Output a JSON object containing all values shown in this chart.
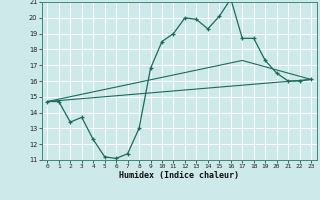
{
  "xlabel": "Humidex (Indice chaleur)",
  "xlim": [
    -0.5,
    23.5
  ],
  "ylim": [
    11,
    21
  ],
  "yticks": [
    11,
    12,
    13,
    14,
    15,
    16,
    17,
    18,
    19,
    20,
    21
  ],
  "xticks": [
    0,
    1,
    2,
    3,
    4,
    5,
    6,
    7,
    8,
    9,
    10,
    11,
    12,
    13,
    14,
    15,
    16,
    17,
    18,
    19,
    20,
    21,
    22,
    23
  ],
  "bg_color": "#cee9e9",
  "line_color": "#1a6b5a",
  "grid_color": "#ffffff",
  "line1_x": [
    0,
    1,
    2,
    3,
    4,
    5,
    6,
    7,
    8,
    9,
    10,
    11,
    12,
    13,
    14,
    15,
    16,
    17,
    18,
    19,
    20,
    21,
    22,
    23
  ],
  "line1_y": [
    14.7,
    14.7,
    13.4,
    13.7,
    12.3,
    11.2,
    11.1,
    11.4,
    13.0,
    16.8,
    18.5,
    19.0,
    20.0,
    19.9,
    19.3,
    20.1,
    21.2,
    18.7,
    18.7,
    17.3,
    16.5,
    16.0,
    16.0,
    16.1
  ],
  "line2_x": [
    0,
    23
  ],
  "line2_y": [
    14.7,
    16.1
  ],
  "line3_x": [
    0,
    17,
    23
  ],
  "line3_y": [
    14.7,
    17.3,
    16.1
  ]
}
